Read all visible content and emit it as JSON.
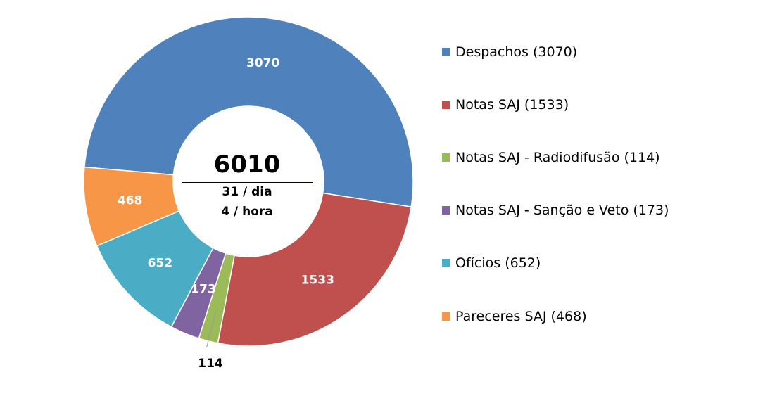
{
  "chart_data": {
    "type": "pie",
    "variant": "donut",
    "categories": [
      "Despachos",
      "Notas SAJ",
      "Notas SAJ - Radiodifusão",
      "Notas SAJ - Sanção e Veto",
      "Ofícios",
      "Pareceres SAJ"
    ],
    "values": [
      3070,
      1533,
      114,
      173,
      652,
      468
    ],
    "data_labels": [
      "3070",
      "1533",
      "114",
      "173",
      "652",
      "468"
    ],
    "colors": [
      "#4F81BD",
      "#C0504D",
      "#9BBB59",
      "#8064A2",
      "#4BACC6",
      "#F79646"
    ],
    "legend": [
      "Despachos (3070)",
      "Notas SAJ (1533)",
      "Notas SAJ - Radiodifusão (114)",
      "Notas SAJ - Sanção e Veto (173)",
      "Ofícios (652)",
      "Pareceres SAJ (468)"
    ],
    "legend_position": "right",
    "center": {
      "total": "6010",
      "per_day": "31 / dia",
      "per_hour": "4 / hora"
    }
  }
}
